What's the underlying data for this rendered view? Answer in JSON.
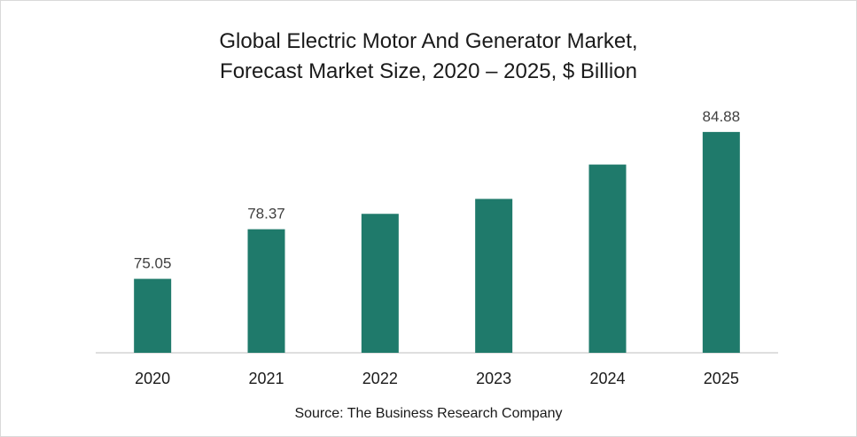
{
  "chart_data": {
    "type": "bar",
    "title_lines": [
      "Global Electric Motor And Generator Market,",
      "Forecast Market Size, 2020 – 2025, $ Billion"
    ],
    "categories": [
      "2020",
      "2021",
      "2022",
      "2023",
      "2024",
      "2025"
    ],
    "values": [
      75.05,
      78.37,
      79.4,
      80.4,
      82.7,
      84.88
    ],
    "data_labels": [
      "75.05",
      "78.37",
      "",
      "",
      "",
      "84.88"
    ],
    "xlabel": "",
    "ylabel": "",
    "ylim": [
      70.1,
      86
    ],
    "grid": false,
    "legend": "none",
    "bar_color": "#1f7a6b",
    "source": "Source: The Business Research Company"
  }
}
